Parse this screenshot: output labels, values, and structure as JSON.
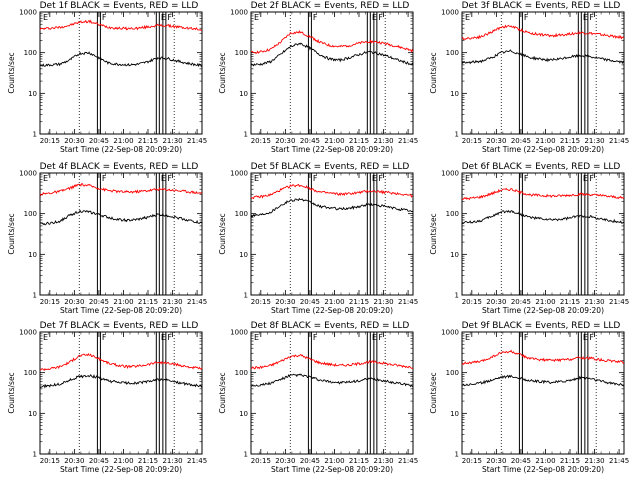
{
  "chart_data": {
    "type": "line",
    "panel_titles": [
      "Det 1f BLACK = Events, RED = LLD",
      "Det 2f BLACK = Events, RED = LLD",
      "Det 3f BLACK = Events, RED = LLD",
      "Det 4f BLACK = Events, RED = LLD",
      "Det 5f BLACK = Events, RED = LLD",
      "Det 6f BLACK = Events, RED = LLD",
      "Det 7f BLACK = Events, RED = LLD",
      "Det 8f BLACK = Events, RED = LLD",
      "Det 9f BLACK = Events, RED = LLD"
    ],
    "xlabel": "Start Time (22-Sep-08 20:09:20)",
    "ylabel": "Counts/sec",
    "yscale": "log",
    "ylim": [
      1,
      1000
    ],
    "y_ticks": [
      1,
      10,
      100,
      1000
    ],
    "y_tick_labels": [
      "1",
      "10",
      "100",
      "1000"
    ],
    "xlim_minutes": [
      0,
      99
    ],
    "x_ticks_minutes": [
      6,
      21,
      36,
      51,
      66,
      81,
      96
    ],
    "x_tick_labels": [
      "20:15",
      "20:30",
      "20:45",
      "21:00",
      "21:15",
      "21:30",
      "21:45"
    ],
    "markers": [
      {
        "type": "F",
        "minute": 36,
        "style": "solid"
      },
      {
        "type": "E",
        "minute": 72,
        "style": "solid"
      },
      {
        "type": "F",
        "minute": 76,
        "style": "solid"
      }
    ],
    "dotted_lines_minutes": [
      24,
      82
    ],
    "corner_flags": [
      "E",
      "F",
      "E"
    ],
    "x_minutes": [
      0,
      6,
      12,
      18,
      24,
      30,
      36,
      42,
      48,
      54,
      60,
      66,
      72,
      78,
      84,
      90,
      96,
      99
    ],
    "series": [
      {
        "name": "Det 1f Events",
        "color": "#000000",
        "values": [
          48,
          50,
          52,
          65,
          95,
          100,
          75,
          55,
          52,
          50,
          52,
          60,
          75,
          72,
          62,
          55,
          50,
          48
        ]
      },
      {
        "name": "Det 1f LLD",
        "color": "#ff0000",
        "values": [
          380,
          400,
          420,
          470,
          560,
          590,
          490,
          420,
          400,
          390,
          400,
          430,
          470,
          460,
          430,
          400,
          380,
          370
        ]
      },
      {
        "name": "Det 2f Events",
        "color": "#000000",
        "values": [
          50,
          52,
          60,
          90,
          140,
          170,
          130,
          90,
          70,
          65,
          75,
          90,
          105,
          95,
          80,
          65,
          55,
          50
        ]
      },
      {
        "name": "Det 2f LLD",
        "color": "#ff0000",
        "values": [
          100,
          105,
          120,
          180,
          300,
          320,
          250,
          180,
          150,
          140,
          150,
          170,
          190,
          180,
          160,
          140,
          120,
          110
        ]
      },
      {
        "name": "Det 3f Events",
        "color": "#000000",
        "values": [
          55,
          58,
          62,
          75,
          100,
          110,
          90,
          75,
          70,
          65,
          70,
          78,
          85,
          80,
          72,
          65,
          60,
          57
        ]
      },
      {
        "name": "Det 3f LLD",
        "color": "#ff0000",
        "values": [
          220,
          230,
          250,
          320,
          430,
          450,
          360,
          300,
          280,
          260,
          270,
          290,
          310,
          300,
          280,
          260,
          240,
          230
        ]
      },
      {
        "name": "Det 4f Events",
        "color": "#000000",
        "values": [
          55,
          58,
          65,
          90,
          115,
          110,
          95,
          80,
          72,
          68,
          72,
          82,
          95,
          90,
          80,
          70,
          62,
          58
        ]
      },
      {
        "name": "Det 4f LLD",
        "color": "#ff0000",
        "values": [
          300,
          320,
          350,
          420,
          520,
          490,
          420,
          370,
          350,
          340,
          350,
          370,
          400,
          390,
          370,
          350,
          330,
          320
        ]
      },
      {
        "name": "Det 5f Events",
        "color": "#000000",
        "values": [
          90,
          95,
          110,
          160,
          210,
          230,
          190,
          150,
          140,
          130,
          135,
          150,
          170,
          160,
          145,
          130,
          120,
          110
        ]
      },
      {
        "name": "Det 5f LLD",
        "color": "#ff0000",
        "values": [
          250,
          260,
          290,
          380,
          480,
          500,
          420,
          340,
          320,
          300,
          310,
          330,
          360,
          350,
          330,
          310,
          290,
          270
        ]
      },
      {
        "name": "Det 6f Events",
        "color": "#000000",
        "values": [
          60,
          62,
          68,
          85,
          110,
          115,
          95,
          80,
          75,
          70,
          72,
          78,
          88,
          85,
          75,
          68,
          63,
          60
        ]
      },
      {
        "name": "Det 6f LLD",
        "color": "#ff0000",
        "values": [
          230,
          240,
          260,
          310,
          380,
          400,
          330,
          290,
          280,
          270,
          275,
          285,
          300,
          295,
          280,
          265,
          250,
          240
        ]
      },
      {
        "name": "Det 7f Events",
        "color": "#000000",
        "values": [
          45,
          48,
          52,
          65,
          80,
          85,
          75,
          62,
          58,
          55,
          56,
          60,
          68,
          65,
          58,
          52,
          48,
          46
        ]
      },
      {
        "name": "Det 7f LLD",
        "color": "#ff0000",
        "values": [
          120,
          125,
          140,
          180,
          260,
          280,
          220,
          170,
          150,
          140,
          145,
          160,
          180,
          170,
          155,
          140,
          130,
          125
        ]
      },
      {
        "name": "Det 8f Events",
        "color": "#000000",
        "values": [
          48,
          50,
          55,
          68,
          85,
          88,
          78,
          65,
          60,
          57,
          58,
          63,
          70,
          67,
          60,
          55,
          50,
          48
        ]
      },
      {
        "name": "Det 8f LLD",
        "color": "#ff0000",
        "values": [
          130,
          135,
          150,
          190,
          250,
          270,
          215,
          175,
          160,
          150,
          155,
          165,
          185,
          178,
          162,
          150,
          140,
          135
        ]
      },
      {
        "name": "Det 9f Events",
        "color": "#000000",
        "values": [
          50,
          52,
          56,
          66,
          78,
          82,
          72,
          63,
          60,
          58,
          60,
          65,
          75,
          72,
          63,
          56,
          52,
          50
        ]
      },
      {
        "name": "Det 9f LLD",
        "color": "#ff0000",
        "values": [
          170,
          175,
          190,
          240,
          310,
          330,
          270,
          220,
          210,
          200,
          205,
          215,
          235,
          228,
          210,
          195,
          185,
          180
        ]
      }
    ]
  }
}
